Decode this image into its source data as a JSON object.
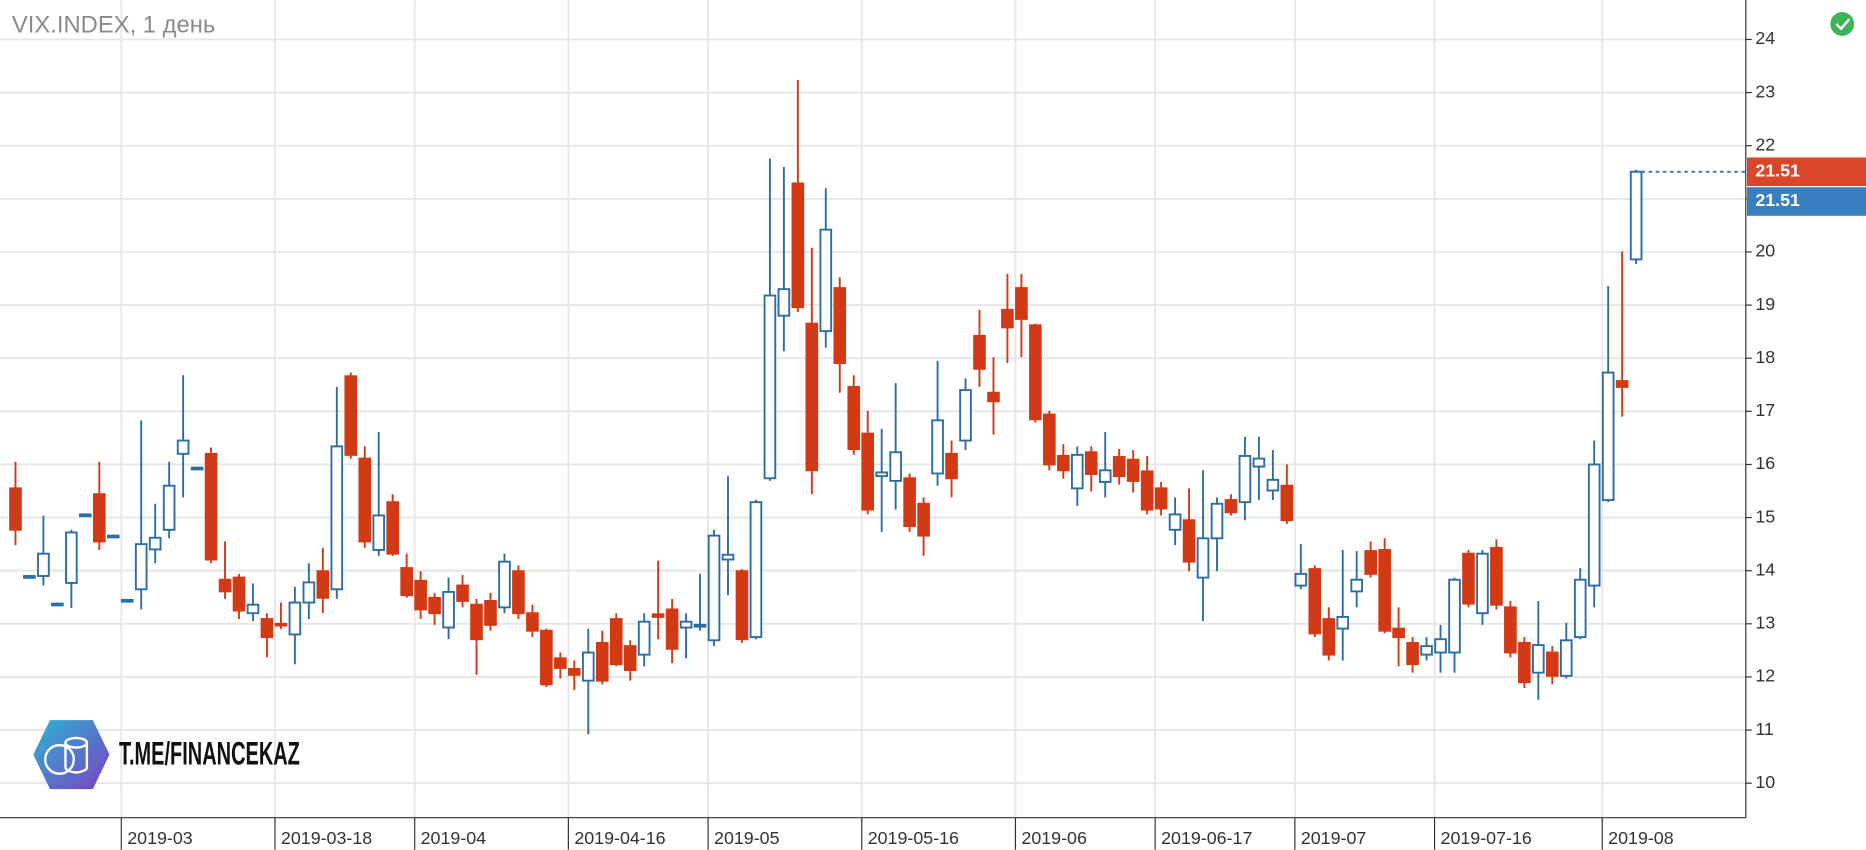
{
  "chart_data": {
    "type": "candlestick",
    "title": "VIX.INDEX, 1 день",
    "logo_text": "T.ME/FINANCEKAZ",
    "up_color": "#2e6da4",
    "down_color": "#d13a14",
    "grid": true,
    "ylim": [
      9.35,
      24.74
    ],
    "yticks": [
      10,
      11,
      12,
      13,
      14,
      15,
      16,
      17,
      18,
      19,
      20,
      21,
      22,
      23,
      24
    ],
    "categories": [
      null,
      null,
      null,
      null,
      null,
      null,
      null,
      null,
      "2019-03",
      null,
      null,
      null,
      null,
      null,
      null,
      null,
      null,
      null,
      null,
      "2019-03-18",
      null,
      null,
      null,
      null,
      null,
      null,
      null,
      null,
      null,
      "2019-04",
      null,
      null,
      null,
      null,
      null,
      null,
      null,
      null,
      null,
      null,
      "2019-04-16",
      null,
      null,
      null,
      null,
      null,
      null,
      null,
      null,
      null,
      "2019-05",
      null,
      null,
      null,
      null,
      null,
      null,
      null,
      null,
      null,
      null,
      "2019-05-16",
      null,
      null,
      null,
      null,
      null,
      null,
      null,
      null,
      null,
      null,
      "2019-06",
      null,
      null,
      null,
      null,
      null,
      null,
      null,
      null,
      null,
      "2019-06-17",
      null,
      null,
      null,
      null,
      null,
      null,
      null,
      null,
      null,
      "2019-07",
      null,
      null,
      null,
      null,
      null,
      null,
      null,
      null,
      null,
      "2019-07-16",
      null,
      null,
      null,
      null,
      null,
      null,
      null,
      null,
      null,
      null,
      null,
      "2019-08",
      null,
      null
    ],
    "open": [
      15.55,
      13.9,
      13.9,
      13.38,
      13.77,
      15.06,
      15.44,
      14.66,
      13.45,
      13.65,
      14.4,
      14.77,
      16.2,
      15.94,
      16.2,
      13.83,
      13.87,
      13.2,
      13.09,
      13.0,
      12.8,
      13.4,
      13.99,
      13.65,
      17.66,
      16.11,
      14.39,
      15.29,
      14.05,
      13.81,
      13.49,
      12.93,
      13.72,
      13.36,
      13.43,
      13.31,
      13.99,
      13.2,
      12.87,
      12.35,
      12.15,
      11.93,
      12.64,
      13.09,
      12.58,
      12.42,
      13.18,
      13.27,
      12.93,
      12.95,
      12.69,
      14.21,
      13.99,
      12.75,
      15.74,
      18.8,
      21.29,
      18.65,
      18.51,
      19.32,
      17.46,
      16.58,
      15.78,
      15.69,
      15.74,
      15.26,
      15.83,
      16.2,
      16.45,
      18.42,
      17.35,
      18.91,
      19.32,
      18.62,
      16.94,
      16.16,
      15.55,
      16.23,
      15.67,
      16.14,
      16.09,
      15.87,
      15.55,
      14.77,
      14.95,
      13.87,
      14.61,
      15.33,
      15.29,
      15.96,
      15.51,
      15.6,
      13.72,
      14.03,
      13.09,
      12.91,
      13.61,
      14.37,
      14.39,
      12.91,
      12.64,
      12.42,
      12.46,
      12.46,
      14.32,
      13.2,
      14.43,
      13.31,
      12.64,
      12.08,
      12.46,
      12.02,
      12.75,
      13.72,
      15.33,
      17.57,
      19.86
    ],
    "high": [
      16.05,
      13.92,
      15.04,
      13.4,
      14.77,
      15.08,
      16.05,
      14.68,
      13.47,
      16.83,
      15.26,
      16.05,
      17.68,
      15.96,
      16.32,
      14.55,
      13.94,
      13.76,
      13.2,
      13.4,
      13.7,
      14.14,
      14.43,
      17.46,
      17.73,
      16.34,
      16.61,
      15.44,
      14.32,
      13.99,
      13.58,
      13.87,
      13.92,
      13.47,
      13.58,
      14.32,
      14.1,
      13.36,
      12.91,
      12.46,
      12.31,
      12.91,
      12.87,
      13.2,
      12.69,
      13.2,
      14.19,
      13.47,
      13.2,
      13.94,
      14.77,
      15.78,
      14.03,
      15.33,
      21.76,
      21.6,
      23.24,
      20.08,
      21.2,
      19.52,
      17.68,
      17.01,
      16.67,
      17.53,
      15.83,
      15.38,
      17.95,
      16.45,
      17.62,
      18.91,
      18.02,
      19.59,
      19.59,
      18.65,
      17.01,
      16.38,
      16.34,
      16.34,
      16.61,
      16.29,
      16.27,
      16.16,
      15.67,
      15.38,
      15.55,
      15.89,
      15.38,
      15.44,
      16.52,
      16.52,
      16.27,
      16.0,
      14.5,
      14.1,
      13.31,
      14.39,
      14.37,
      14.55,
      14.61,
      13.31,
      12.75,
      12.75,
      12.98,
      13.87,
      14.39,
      14.39,
      14.59,
      13.43,
      12.75,
      13.43,
      12.58,
      13.02,
      14.05,
      16.45,
      19.36,
      20.01,
      21.55
    ],
    "low": [
      14.48,
      13.88,
      13.72,
      13.36,
      13.3,
      15.04,
      14.39,
      14.64,
      13.43,
      13.27,
      14.14,
      14.61,
      15.38,
      15.92,
      14.14,
      13.47,
      13.09,
      13.05,
      12.37,
      12.9,
      12.24,
      13.09,
      13.2,
      13.47,
      16.11,
      14.43,
      14.28,
      14.28,
      13.49,
      13.09,
      12.98,
      12.71,
      13.31,
      12.04,
      12.87,
      13.2,
      13.09,
      12.75,
      11.81,
      11.97,
      11.75,
      10.92,
      11.86,
      12.2,
      11.93,
      12.2,
      12.71,
      12.26,
      12.35,
      12.87,
      12.58,
      13.54,
      12.64,
      12.71,
      15.69,
      18.13,
      18.87,
      15.44,
      18.2,
      17.35,
      16.18,
      15.06,
      14.73,
      15.15,
      14.73,
      14.28,
      15.6,
      15.38,
      16.27,
      17.46,
      16.56,
      17.91,
      18.02,
      16.79,
      15.89,
      15.73,
      15.22,
      15.49,
      15.38,
      15.62,
      15.47,
      15.06,
      15.04,
      14.48,
      13.99,
      13.05,
      13.99,
      15.04,
      14.95,
      15.33,
      15.33,
      14.88,
      13.65,
      12.75,
      12.31,
      12.31,
      13.31,
      13.87,
      12.82,
      12.2,
      12.08,
      12.31,
      12.08,
      12.08,
      13.31,
      12.98,
      13.27,
      12.37,
      11.79,
      11.57,
      11.86,
      11.97,
      12.71,
      13.31,
      15.29,
      16.9,
      19.77
    ],
    "close": [
      14.77,
      13.9,
      14.32,
      13.38,
      14.72,
      15.06,
      14.55,
      14.66,
      13.45,
      14.5,
      14.62,
      15.6,
      16.45,
      15.94,
      14.21,
      13.61,
      13.25,
      13.36,
      12.75,
      12.97,
      13.4,
      13.78,
      13.49,
      16.34,
      16.18,
      14.55,
      15.04,
      14.32,
      13.54,
      13.27,
      13.2,
      13.6,
      13.43,
      12.71,
      12.98,
      14.17,
      13.2,
      12.87,
      11.86,
      12.17,
      12.04,
      12.46,
      11.93,
      12.24,
      12.13,
      13.04,
      13.13,
      12.53,
      13.04,
      12.98,
      14.66,
      14.3,
      12.71,
      15.29,
      19.18,
      19.3,
      18.96,
      15.89,
      20.42,
      17.91,
      16.29,
      15.15,
      15.85,
      16.23,
      14.84,
      14.66,
      16.83,
      15.74,
      17.4,
      17.8,
      17.19,
      18.58,
      18.74,
      16.85,
      16.0,
      15.89,
      16.18,
      15.82,
      15.89,
      15.78,
      15.69,
      15.15,
      15.17,
      15.06,
      14.17,
      14.61,
      15.26,
      15.1,
      16.16,
      16.11,
      15.71,
      14.95,
      13.94,
      12.82,
      12.42,
      13.13,
      13.83,
      13.94,
      12.87,
      12.75,
      12.24,
      12.58,
      12.71,
      13.83,
      13.38,
      14.32,
      13.36,
      12.46,
      11.9,
      12.6,
      12.02,
      12.69,
      13.83,
      16.0,
      17.73,
      17.46,
      21.51
    ],
    "price_tags": [
      {
        "value": 21.51,
        "color": "#d9472b"
      },
      {
        "value": 21.51,
        "color": "#3a7fbf"
      }
    ]
  }
}
